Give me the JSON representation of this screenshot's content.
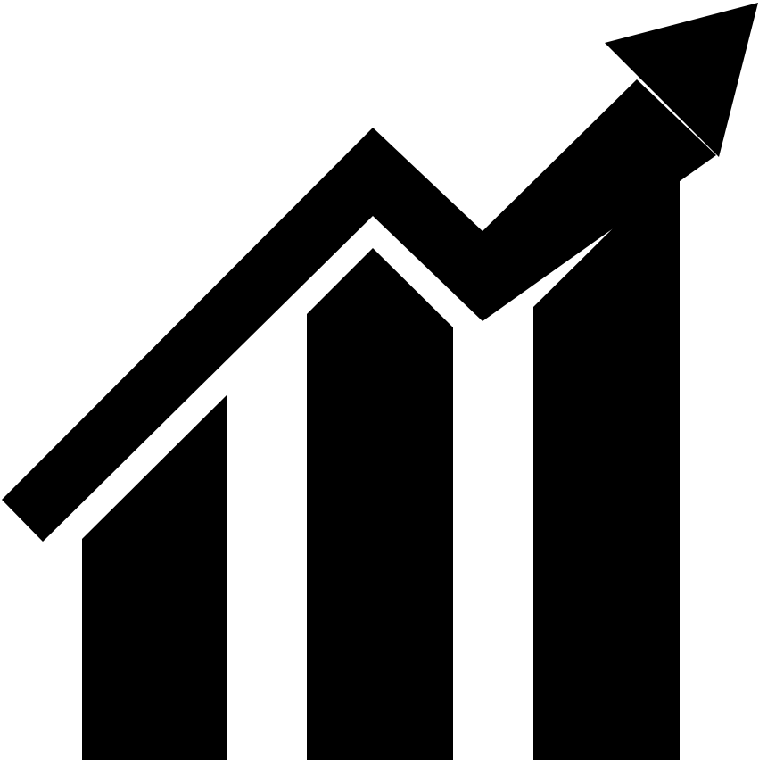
{
  "icon": {
    "name": "growth-chart-icon",
    "depicts": [
      "bar",
      "bar",
      "bar",
      "up-trend-arrow"
    ],
    "color": "#000000",
    "background": "#ffffff"
  }
}
